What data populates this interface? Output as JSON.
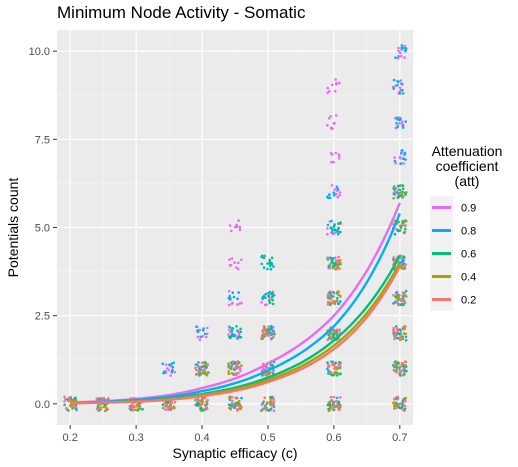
{
  "chart_data": {
    "type": "scatter",
    "title": "Minimum Node Activity - Somatic",
    "xlabel": "Synaptic efficacy (c)",
    "ylabel": "Potentials count",
    "xlim": [
      0.18,
      0.72
    ],
    "ylim": [
      -0.6,
      10.6
    ],
    "x_ticks": [
      "0.2",
      "0.3",
      "0.4",
      "0.5",
      "0.6",
      "0.7"
    ],
    "x_tick_values": [
      0.2,
      0.3,
      0.4,
      0.5,
      0.6,
      0.7
    ],
    "y_ticks": [
      "0.0",
      "2.5",
      "5.0",
      "7.5",
      "10.0"
    ],
    "y_tick_values": [
      0,
      2.5,
      5,
      7.5,
      10
    ],
    "grid": true,
    "legend_position": "right",
    "legend_title": [
      "Attenuation",
      "coefficient",
      "(att)"
    ],
    "efficacy_levels": [
      0.2,
      0.25,
      0.3,
      0.35,
      0.4,
      0.45,
      0.5,
      0.6,
      0.7
    ],
    "series": [
      {
        "name": "0.9",
        "color": "#E76BF3",
        "clusters": [
          [
            0.2,
            [
              0
            ]
          ],
          [
            0.25,
            [
              0
            ]
          ],
          [
            0.3,
            [
              0
            ]
          ],
          [
            0.35,
            [
              0,
              1
            ]
          ],
          [
            0.4,
            [
              0,
              1,
              2
            ]
          ],
          [
            0.45,
            [
              0,
              1,
              2,
              3,
              4,
              5
            ]
          ],
          [
            0.5,
            [
              0,
              1,
              2,
              3
            ]
          ],
          [
            0.6,
            [
              0,
              1,
              2,
              3,
              4,
              5,
              6,
              7,
              8,
              9
            ]
          ],
          [
            0.7,
            [
              0,
              1,
              2,
              3,
              4,
              5,
              6,
              7,
              8,
              9,
              10
            ]
          ]
        ],
        "curve": [
          [
            0.2,
            0.04
          ],
          [
            0.3,
            0.14
          ],
          [
            0.4,
            0.45
          ],
          [
            0.5,
            1.15
          ],
          [
            0.6,
            2.5
          ],
          [
            0.7,
            5.7
          ]
        ]
      },
      {
        "name": "0.8",
        "color": "#00B0F6",
        "clusters": [
          [
            0.2,
            [
              0
            ]
          ],
          [
            0.25,
            [
              0
            ]
          ],
          [
            0.3,
            [
              0
            ]
          ],
          [
            0.35,
            [
              0,
              1
            ]
          ],
          [
            0.4,
            [
              0,
              1,
              2
            ]
          ],
          [
            0.45,
            [
              0,
              1,
              2,
              3
            ]
          ],
          [
            0.5,
            [
              0,
              1,
              2,
              3,
              4
            ]
          ],
          [
            0.6,
            [
              0,
              1,
              2,
              3,
              4,
              5,
              6
            ]
          ],
          [
            0.7,
            [
              0,
              1,
              2,
              3,
              4,
              5,
              6,
              7,
              8,
              9,
              10
            ]
          ]
        ],
        "curve": [
          [
            0.2,
            0.03
          ],
          [
            0.3,
            0.11
          ],
          [
            0.4,
            0.36
          ],
          [
            0.5,
            0.95
          ],
          [
            0.6,
            2.2
          ],
          [
            0.7,
            5.4
          ]
        ]
      },
      {
        "name": "0.6",
        "color": "#00BF7D",
        "clusters": [
          [
            0.2,
            [
              0
            ]
          ],
          [
            0.25,
            [
              0
            ]
          ],
          [
            0.3,
            [
              0
            ]
          ],
          [
            0.35,
            [
              0
            ]
          ],
          [
            0.4,
            [
              0,
              1
            ]
          ],
          [
            0.45,
            [
              0,
              1,
              2
            ]
          ],
          [
            0.5,
            [
              0,
              1,
              2,
              3,
              4
            ]
          ],
          [
            0.6,
            [
              0,
              1,
              2,
              3,
              4,
              5
            ]
          ],
          [
            0.7,
            [
              0,
              1,
              2,
              3,
              4,
              5,
              6
            ]
          ]
        ],
        "curve": [
          [
            0.2,
            0.02
          ],
          [
            0.3,
            0.08
          ],
          [
            0.4,
            0.28
          ],
          [
            0.5,
            0.75
          ],
          [
            0.6,
            1.8
          ],
          [
            0.7,
            4.2
          ]
        ]
      },
      {
        "name": "0.4",
        "color": "#A3A500",
        "clusters": [
          [
            0.2,
            [
              0
            ]
          ],
          [
            0.25,
            [
              0
            ]
          ],
          [
            0.3,
            [
              0
            ]
          ],
          [
            0.35,
            [
              0
            ]
          ],
          [
            0.4,
            [
              0,
              1
            ]
          ],
          [
            0.45,
            [
              0,
              1
            ]
          ],
          [
            0.5,
            [
              0,
              1,
              2
            ]
          ],
          [
            0.6,
            [
              0,
              1,
              2,
              3,
              4
            ]
          ],
          [
            0.7,
            [
              0,
              1,
              2,
              3,
              4,
              5,
              6
            ]
          ]
        ],
        "curve": [
          [
            0.2,
            0.02
          ],
          [
            0.3,
            0.07
          ],
          [
            0.4,
            0.25
          ],
          [
            0.5,
            0.68
          ],
          [
            0.6,
            1.65
          ],
          [
            0.7,
            4.0
          ]
        ]
      },
      {
        "name": "0.2",
        "color": "#F8766D",
        "clusters": [
          [
            0.2,
            [
              0
            ]
          ],
          [
            0.25,
            [
              0
            ]
          ],
          [
            0.3,
            [
              0
            ]
          ],
          [
            0.35,
            [
              0
            ]
          ],
          [
            0.4,
            [
              0,
              1
            ]
          ],
          [
            0.45,
            [
              0,
              1
            ]
          ],
          [
            0.5,
            [
              0,
              1,
              2
            ]
          ],
          [
            0.6,
            [
              0,
              1,
              2,
              3,
              4
            ]
          ],
          [
            0.7,
            [
              0,
              1,
              2,
              3,
              4
            ]
          ]
        ],
        "curve": [
          [
            0.2,
            0.02
          ],
          [
            0.3,
            0.06
          ],
          [
            0.4,
            0.22
          ],
          [
            0.5,
            0.62
          ],
          [
            0.6,
            1.55
          ],
          [
            0.7,
            3.9
          ]
        ]
      }
    ]
  }
}
